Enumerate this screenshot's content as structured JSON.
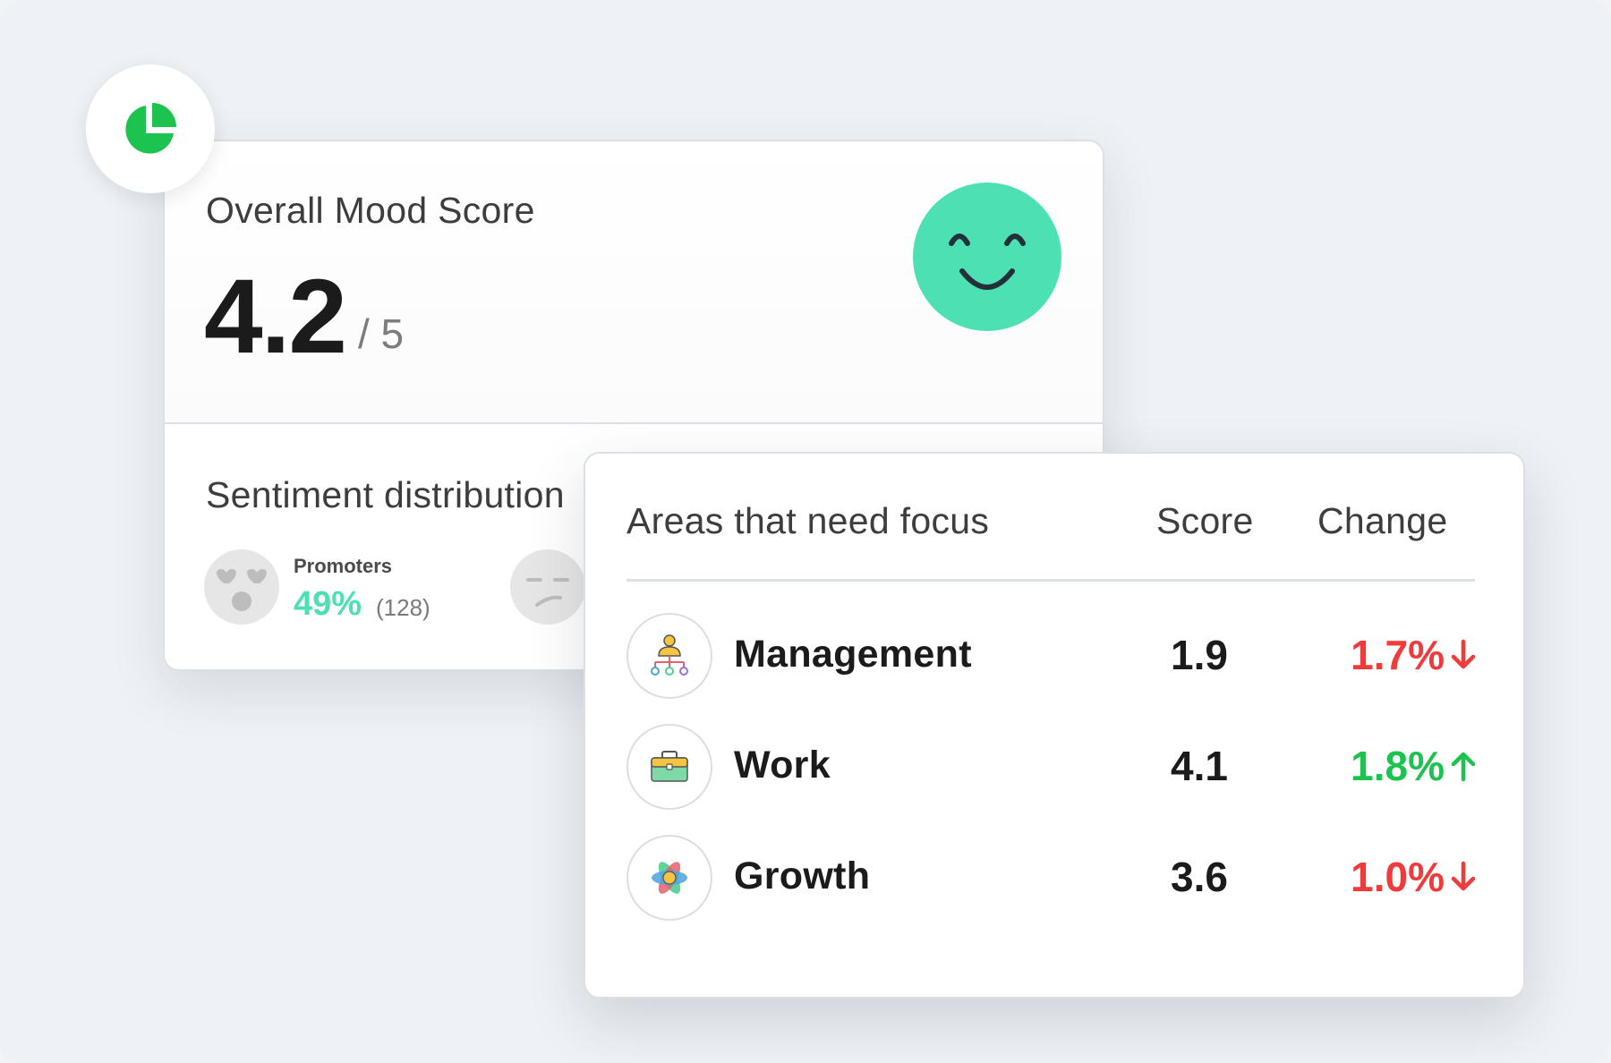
{
  "mood_card": {
    "title": "Overall Mood Score",
    "score": "4.2",
    "score_max": "/ 5",
    "sentiment_title": "Sentiment distribution",
    "promoters": {
      "label": "Promoters",
      "percent": "49%",
      "count": "(128)"
    }
  },
  "focus_card": {
    "headers": {
      "area": "Areas that need focus",
      "score": "Score",
      "change": "Change"
    },
    "rows": [
      {
        "name": "Management",
        "score": "1.9",
        "change": "1.7%",
        "direction": "down",
        "icon": "management-org-icon"
      },
      {
        "name": "Work",
        "score": "4.1",
        "change": "1.8%",
        "direction": "up",
        "icon": "briefcase-icon"
      },
      {
        "name": "Growth",
        "score": "3.6",
        "change": "1.0%",
        "direction": "down",
        "icon": "atom-icon"
      }
    ]
  },
  "colors": {
    "accent_green": "#1cc44f",
    "mint": "#4de0b3",
    "negative_red": "#ef3b3b"
  }
}
